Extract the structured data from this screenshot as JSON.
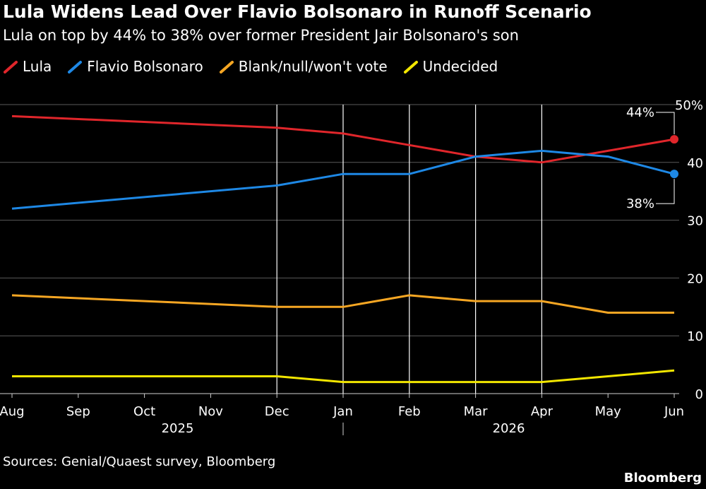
{
  "header": {
    "title": "Lula Widens Lead Over Flavio Bolsonaro in Runoff Scenario",
    "subtitle": "Lula on top by 44% to 38% over former President Jair Bolsonaro's son"
  },
  "footer": {
    "source": "Sources: Genial/Quaest survey, Bloomberg",
    "brand": "Bloomberg"
  },
  "chart_data": {
    "type": "line",
    "title": "Lula Widens Lead Over Flavio Bolsonaro in Runoff Scenario",
    "subtitle": "Lula on top by 44% to 38% over former President Jair Bolsonaro's son",
    "x_ticks": [
      "Aug",
      "Sep",
      "Oct",
      "Nov",
      "Dec",
      "Jan",
      "Feb",
      "Mar",
      "Apr",
      "May",
      "Jun"
    ],
    "year_labels": [
      {
        "label": "2025",
        "center_month": 2.5
      },
      {
        "label": "2026",
        "center_month": 7.5
      }
    ],
    "year_separator_month": 5,
    "y_ticks": [
      "0",
      "10",
      "20",
      "30",
      "40",
      "50%"
    ],
    "ylim": [
      0,
      50
    ],
    "legend_position": "top-left",
    "grid": true,
    "series": [
      {
        "name": "Lula",
        "color": "#e0262b",
        "points": [
          [
            0,
            48
          ],
          [
            4,
            46
          ],
          [
            5,
            45
          ],
          [
            6,
            43
          ],
          [
            7,
            41
          ],
          [
            8,
            40
          ],
          [
            9,
            42
          ],
          [
            10,
            44
          ]
        ]
      },
      {
        "name": "Flavio Bolsonaro",
        "color": "#1e88e5",
        "points": [
          [
            0,
            32
          ],
          [
            4,
            36
          ],
          [
            5,
            38
          ],
          [
            6,
            38
          ],
          [
            7,
            41
          ],
          [
            8,
            42
          ],
          [
            9,
            41
          ],
          [
            10,
            38
          ]
        ]
      },
      {
        "name": "Blank/null/won't vote",
        "color": "#f5a623",
        "points": [
          [
            0,
            17
          ],
          [
            4,
            15
          ],
          [
            5,
            15
          ],
          [
            6,
            17
          ],
          [
            7,
            16
          ],
          [
            8,
            16
          ],
          [
            9,
            14
          ],
          [
            10,
            14
          ]
        ]
      },
      {
        "name": "Undecided",
        "color": "#f2e600",
        "points": [
          [
            0,
            3
          ],
          [
            4,
            3
          ],
          [
            5,
            2
          ],
          [
            6,
            2
          ],
          [
            7,
            2
          ],
          [
            8,
            2
          ],
          [
            9,
            3
          ],
          [
            10,
            4
          ]
        ]
      }
    ],
    "annotations": [
      {
        "text": "44%",
        "series": "Lula"
      },
      {
        "text": "38%",
        "series": "Flavio Bolsonaro"
      }
    ],
    "vertical_gridline_months": [
      4,
      5,
      6,
      7,
      8
    ]
  }
}
